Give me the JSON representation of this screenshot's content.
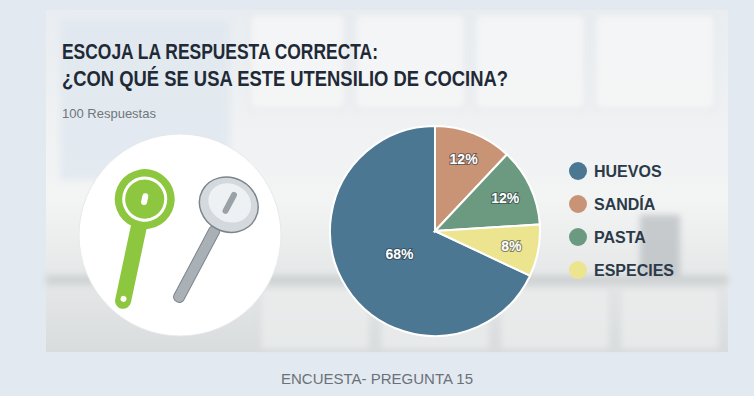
{
  "chart_data": {
    "type": "pie",
    "title": "ESCOJA LA RESPUESTA CORRECTA:\n¿CON QUÉ SE USA ESTE UTENSILIO DE COCINA?",
    "subtitle": "100 Respuestas",
    "categories": [
      "HUEVOS",
      "SANDÍA",
      "PASTA",
      "ESPECIES"
    ],
    "values": [
      68,
      12,
      12,
      8
    ],
    "value_labels": [
      "68%",
      "12%",
      "12%",
      "8%"
    ],
    "colors": [
      "#4b7792",
      "#c99376",
      "#6c9a80",
      "#ece48e"
    ],
    "data_labels": true,
    "legend": "right",
    "annotations": [
      "ENCUESTA- PREGUNTA 15"
    ]
  }
}
